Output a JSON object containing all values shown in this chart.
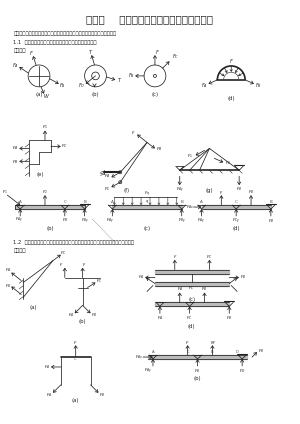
{
  "title": "第一章    静力学基本概念与物体的受力分析",
  "intro": "下列习题中，未画出重力的各物体的自重不计，所有接触面均为光滑接触。",
  "s1_head": "1.1  试画在下列各物体（不包括销钉与支座）的受力图。",
  "s1_ans": "解：如图",
  "s2_head": "1.2  画出下列各物体系统中各物体（不包括销钉与支座）以及物体系统整体受力图。",
  "s2_ans": "解：如图",
  "bg": "#ffffff",
  "fg": "#222222",
  "gray": "#555555"
}
